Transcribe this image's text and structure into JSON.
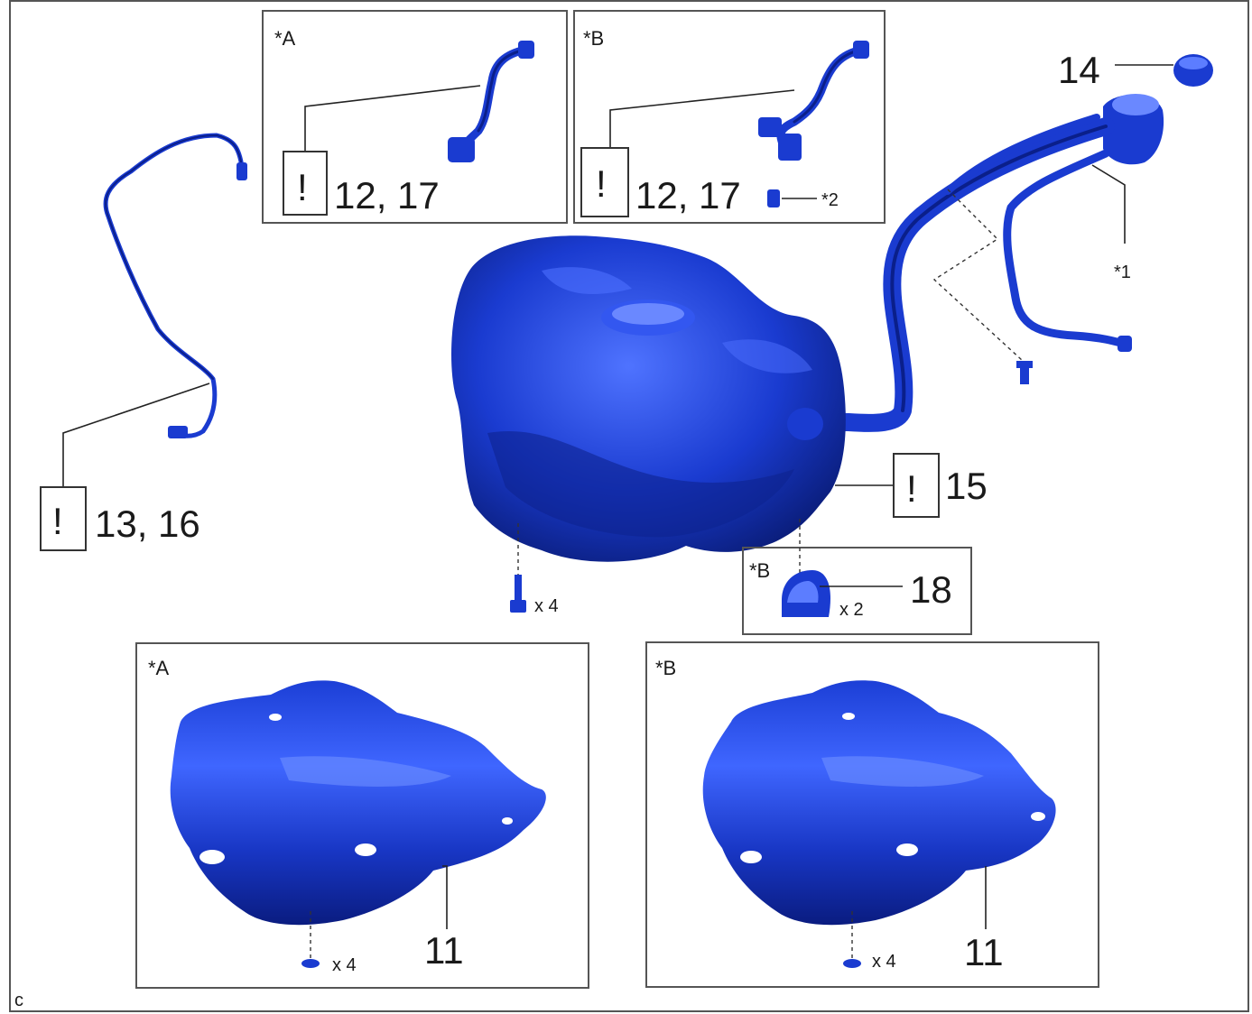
{
  "corner_code": "c",
  "inset_tags": {
    "a": "*A",
    "b": "*B"
  },
  "callouts": {
    "hose_a": "12, 17",
    "hose_b": "12, 17",
    "brake_line": "13, 16",
    "fuel_cap": "14",
    "tank": "15",
    "clamp": "18",
    "protector_a": "11",
    "protector_b": "11",
    "note_1": "*1",
    "note_2": "*2"
  },
  "quantities": {
    "bolts": "x 4",
    "clamps": "x 2",
    "clips_a": "x 4",
    "clips_b": "x 4"
  },
  "caution_mark": "!",
  "colors": {
    "part_blue": "#1a3bd0",
    "part_dark": "#0a1f8a",
    "part_light": "#5c7dff",
    "frame": "#555555"
  }
}
